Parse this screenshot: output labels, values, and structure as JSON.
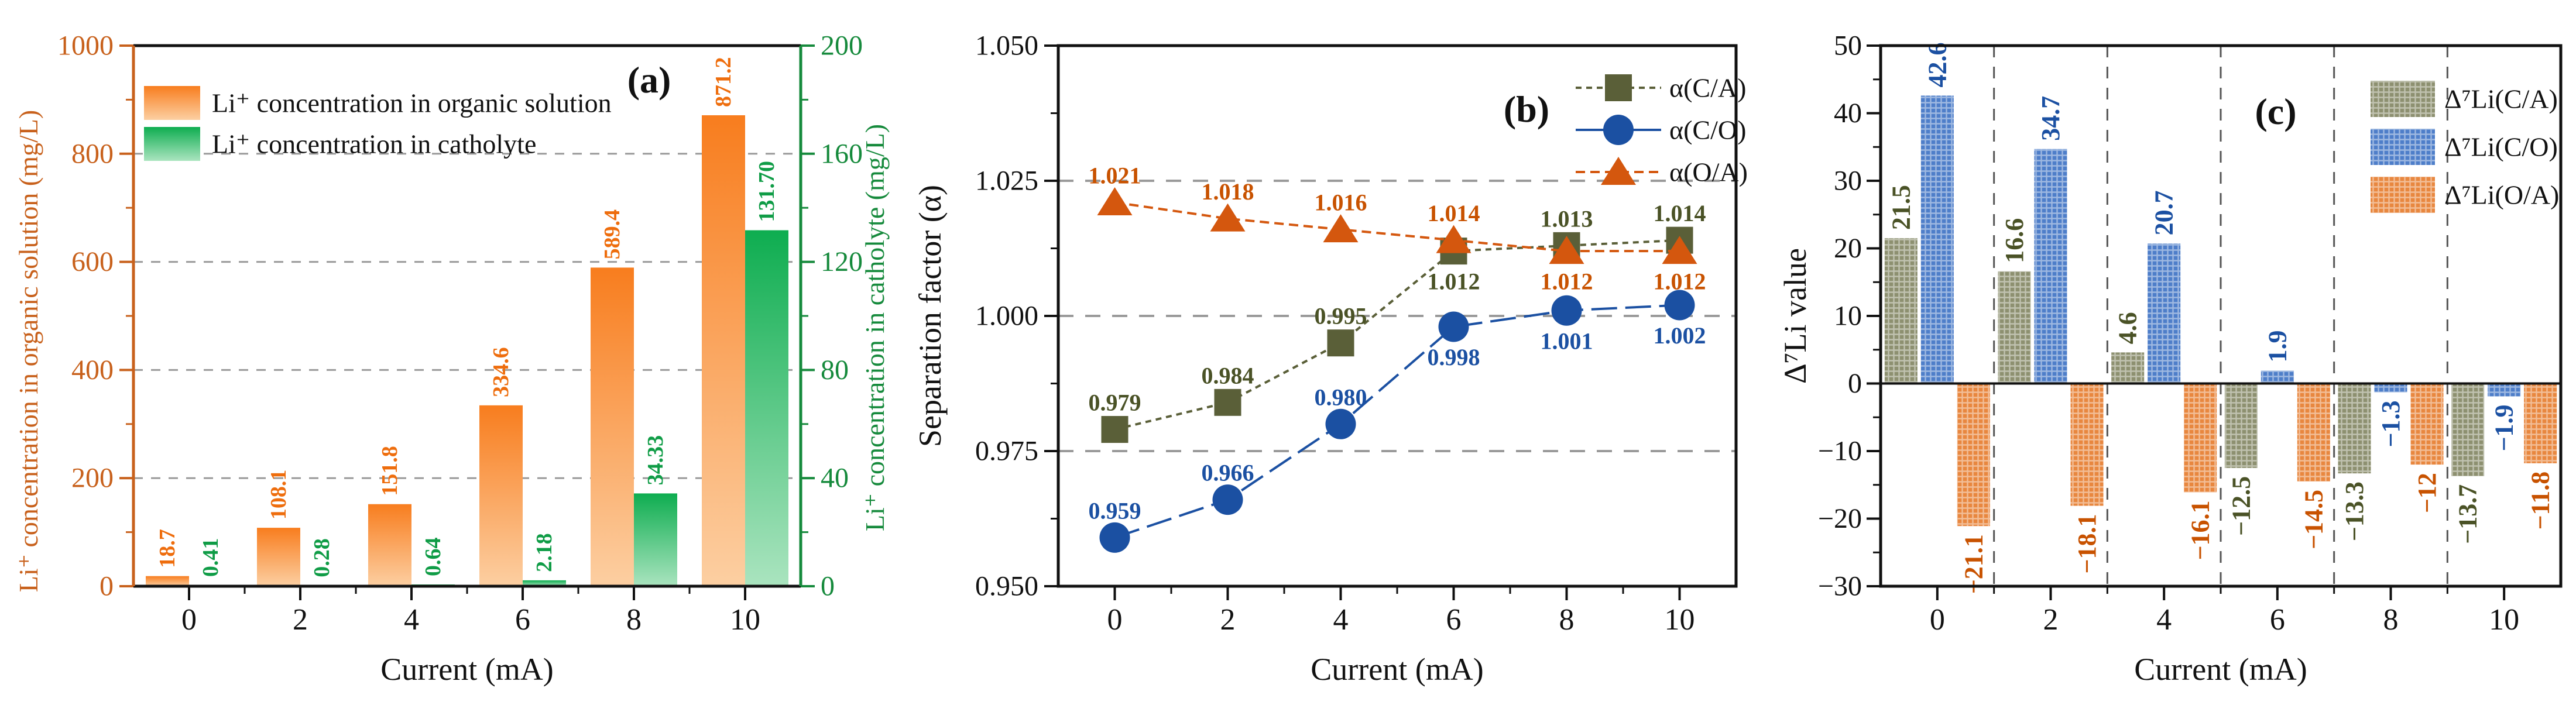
{
  "figure": {
    "panels": [
      {
        "id": "a",
        "label": "(a)"
      },
      {
        "id": "b",
        "label": "(b)"
      },
      {
        "id": "c",
        "label": "(c)"
      }
    ]
  },
  "chart_data": [
    {
      "id": "a",
      "type": "bar",
      "panel_label": "(a)",
      "xlabel": "Current (mA)",
      "categories": [
        0,
        2,
        4,
        6,
        8,
        10
      ],
      "x_ticks": [
        "0",
        "2",
        "4",
        "6",
        "8",
        "10"
      ],
      "left_axis": {
        "label": "Li⁺ concentration in organic solution (mg/L)",
        "range": [
          0,
          1000
        ],
        "ticks": [
          0,
          200,
          400,
          600,
          800,
          1000
        ],
        "tick_labels": [
          "0",
          "200",
          "400",
          "600",
          "800",
          "1000"
        ],
        "color": "#c8611c"
      },
      "right_axis": {
        "label": "Li⁺ concentration in catholyte (mg/L)",
        "range": [
          0,
          200
        ],
        "ticks": [
          0,
          40,
          80,
          120,
          160,
          200
        ],
        "tick_labels": [
          "0",
          "40",
          "80",
          "120",
          "160",
          "200"
        ],
        "color": "#168a3c"
      },
      "gridlines": [
        200,
        400,
        600,
        800
      ],
      "series": [
        {
          "name": "Li⁺ concentration in organic solution",
          "axis": "left",
          "color_top": "#f87d1e",
          "color_bottom": "#fccfa2",
          "label_color": "#ee6d0d",
          "values": [
            18.7,
            108.1,
            151.8,
            334.6,
            589.4,
            871.2
          ],
          "value_labels": [
            "18.7",
            "108.1",
            "151.8",
            "334.6",
            "589.4",
            "871.2"
          ]
        },
        {
          "name": "Li⁺ concentration in catholyte",
          "axis": "right",
          "color_top": "#0ead50",
          "color_bottom": "#aae4bf",
          "label_color": "#0f9c46",
          "values": [
            0.41,
            0.28,
            0.64,
            2.18,
            34.33,
            131.7
          ],
          "value_labels": [
            "0.41",
            "0.28",
            "0.64",
            "2.18",
            "34.33",
            "131.70"
          ]
        }
      ]
    },
    {
      "id": "b",
      "type": "line",
      "panel_label": "(b)",
      "xlabel": "Current (mA)",
      "ylabel": "Separation factor (α)",
      "x": [
        0,
        2,
        4,
        6,
        8,
        10
      ],
      "x_ticks": [
        "0",
        "2",
        "4",
        "6",
        "8",
        "10"
      ],
      "ylim": [
        0.95,
        1.05
      ],
      "y_tick_values": [
        0.95,
        0.975,
        1.0,
        1.025,
        1.05
      ],
      "y_ticks": [
        "0.950",
        "0.975",
        "1.000",
        "1.025",
        "1.050"
      ],
      "gridlines": [
        0.975,
        1.0,
        1.025
      ],
      "legend_position": "top-right",
      "series": [
        {
          "name": "α(C/A)",
          "marker": "square",
          "color": "#5a5f38",
          "label_color": "#4a5226",
          "line_dash": "10 8",
          "values": [
            0.979,
            0.984,
            0.995,
            1.012,
            1.013,
            1.014
          ],
          "value_labels": [
            "0.979",
            "0.984",
            "0.995",
            "1.012",
            "1.013",
            "1.014"
          ],
          "label_side": [
            "above",
            "above",
            "above",
            "below",
            "above",
            "above"
          ]
        },
        {
          "name": "α(C/O)",
          "marker": "circle",
          "color": "#1b50a2",
          "label_color": "#1b50a2",
          "line_dash": "44 14",
          "values": [
            0.959,
            0.966,
            0.98,
            0.998,
            1.001,
            1.002
          ],
          "value_labels": [
            "0.959",
            "0.966",
            "0.980",
            "0.998",
            "1.001",
            "1.002"
          ],
          "label_side": [
            "above",
            "above",
            "above",
            "below",
            "below",
            "below"
          ]
        },
        {
          "name": "α(O/A)",
          "marker": "triangle",
          "color": "#d4570e",
          "label_color": "#c85200",
          "line_dash": "16 9",
          "values": [
            1.021,
            1.018,
            1.016,
            1.014,
            1.012,
            1.012
          ],
          "value_labels": [
            "1.021",
            "1.018",
            "1.016",
            "1.014",
            "1.012",
            "1.012"
          ],
          "label_side": [
            "above",
            "above",
            "above",
            "above",
            "below",
            "below"
          ]
        }
      ]
    },
    {
      "id": "c",
      "type": "bar",
      "panel_label": "(c)",
      "xlabel": "Current (mA)",
      "ylabel": "Δ⁷Li value",
      "categories": [
        0,
        2,
        4,
        6,
        8,
        10
      ],
      "x_ticks": [
        "0",
        "2",
        "4",
        "6",
        "8",
        "10"
      ],
      "ylim": [
        -30,
        50
      ],
      "y_tick_values": [
        -30,
        -20,
        -10,
        0,
        10,
        20,
        30,
        40,
        50
      ],
      "y_ticks": [
        "−30",
        "−20",
        "−10",
        "0",
        "10",
        "20",
        "30",
        "40",
        "50"
      ],
      "separators": [
        1,
        3,
        5,
        7,
        9
      ],
      "legend_position": "top-right",
      "series": [
        {
          "name": "Δ⁷Li(C/A)",
          "color": "#8d9070",
          "label_color": "#4a5226",
          "values": [
            21.5,
            16.6,
            4.6,
            -12.5,
            -13.3,
            -13.7
          ],
          "value_labels": [
            "21.5",
            "16.6",
            "4.6",
            "−12.5",
            "−13.3",
            "−13.7"
          ]
        },
        {
          "name": "Δ⁷Li(C/O)",
          "color": "#4e7ec9",
          "label_color": "#1b50a2",
          "values": [
            42.6,
            34.7,
            20.7,
            1.9,
            -1.3,
            -1.9
          ],
          "value_labels": [
            "42.6",
            "34.7",
            "20.7",
            "1.9",
            "−1.3",
            "−1.9"
          ]
        },
        {
          "name": "Δ⁷Li(O/A)",
          "color": "#e8873f",
          "label_color": "#c85200",
          "values": [
            -21.1,
            -18.1,
            -16.1,
            -14.5,
            -12,
            -11.8
          ],
          "value_labels": [
            "−21.1",
            "−18.1",
            "−16.1",
            "−14.5",
            "−12",
            "−11.8"
          ]
        }
      ]
    }
  ]
}
